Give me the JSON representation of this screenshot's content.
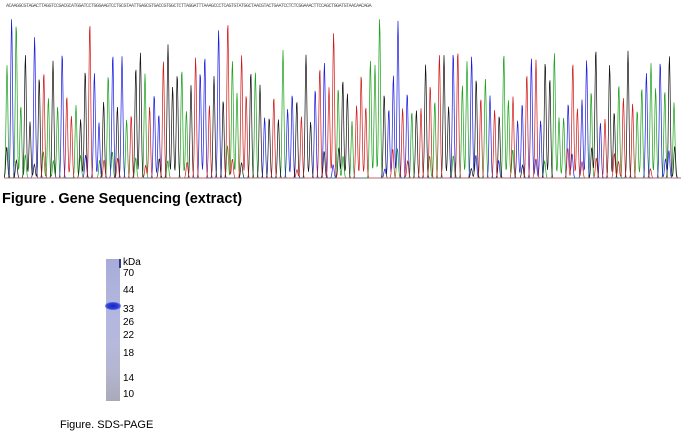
{
  "sequencing": {
    "caption": "Figure . Gene Sequencing (extract)",
    "colors": {
      "A": "#18a018",
      "C": "#1a1ae0",
      "G": "#111111",
      "T": "#d01818"
    }
  },
  "sds_page": {
    "unit": "kDa",
    "markers": [
      "70",
      "44",
      "33",
      "26",
      "22",
      "18",
      "14",
      "10"
    ],
    "caption": "Figure. SDS-PAGE",
    "band_color": "#1422c8"
  }
}
